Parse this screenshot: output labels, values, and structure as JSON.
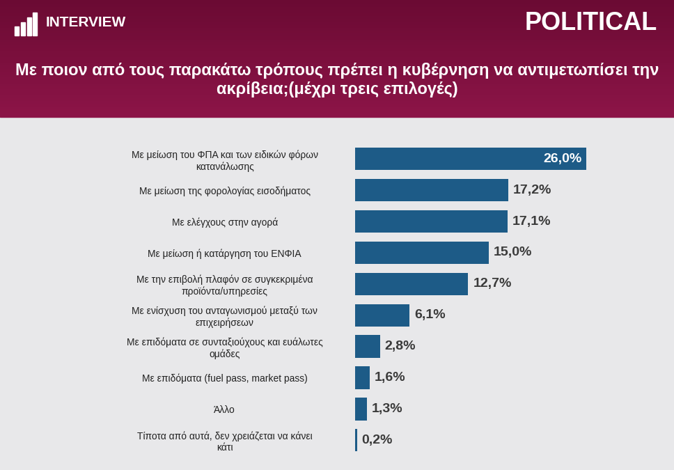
{
  "chart_data": {
    "type": "bar",
    "orientation": "horizontal",
    "logo_text": "INTERVIEW",
    "publisher": "POLITICAL",
    "title": "Με ποιον από τους παρακάτω τρόπους πρέπει η κυβέρνηση να αντιμετωπίσει την ακρίβεια;(μέχρι τρεις επιλογές)",
    "categories": [
      "Με μείωση του ΦΠΑ και των ειδικών φόρων κατανάλωσης",
      "Με μείωση της φορολογίας εισοδήματος",
      "Με ελέγχους στην αγορά",
      "Με μείωση ή κατάργηση του ΕΝΦΙΑ",
      "Με την επιβολή πλαφόν σε συγκεκριμένα προϊόντα/υπηρεσίες",
      "Με ενίσχυση του ανταγωνισμού μεταξύ των επιχειρήσεων",
      "Με επιδόματα σε συνταξιούχους και ευάλωτες ομάδες",
      "Με επιδόματα (fuel pass, market pass)",
      "Άλλο",
      "Τίποτα από αυτά, δεν χρειάζεται να κάνει κάτι"
    ],
    "values": [
      26.0,
      17.2,
      17.1,
      15.0,
      12.7,
      6.1,
      2.8,
      1.6,
      1.3,
      0.2
    ],
    "value_labels": [
      "26,0%",
      "17,2%",
      "17,1%",
      "15,0%",
      "12,7%",
      "6,1%",
      "2,8%",
      "1,6%",
      "1,3%",
      "0,2%"
    ],
    "color": "#1d5b87",
    "xlim": [
      0,
      26
    ],
    "tick_labels": "y",
    "data_labels": true,
    "grid": false
  }
}
